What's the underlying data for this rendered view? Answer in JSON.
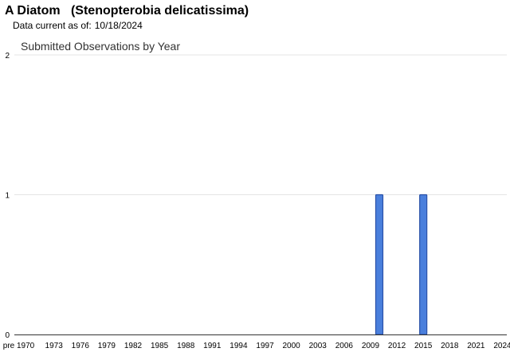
{
  "header": {
    "title": "A Diatom   (Stenopterobia delicatissima)",
    "data_current_label": "Data current as of:",
    "data_current_date": "10/18/2024"
  },
  "chart_data": {
    "type": "bar",
    "title": "Submitted Observations by Year",
    "xlabel": "",
    "ylabel": "",
    "ylim": [
      0,
      2
    ],
    "y_ticks": [
      0,
      1,
      2
    ],
    "x_tick_labels": [
      "pre 1970",
      "1973",
      "1976",
      "1979",
      "1982",
      "1985",
      "1988",
      "1991",
      "1994",
      "1997",
      "2000",
      "2003",
      "2006",
      "2009",
      "2012",
      "2015",
      "2018",
      "2021",
      "2024"
    ],
    "categories": [
      "pre 1970",
      "1970",
      "1971",
      "1972",
      "1973",
      "1974",
      "1975",
      "1976",
      "1977",
      "1978",
      "1979",
      "1980",
      "1981",
      "1982",
      "1983",
      "1984",
      "1985",
      "1986",
      "1987",
      "1988",
      "1989",
      "1990",
      "1991",
      "1992",
      "1993",
      "1994",
      "1995",
      "1996",
      "1997",
      "1998",
      "1999",
      "2000",
      "2001",
      "2002",
      "2003",
      "2004",
      "2005",
      "2006",
      "2007",
      "2008",
      "2009",
      "2010",
      "2011",
      "2012",
      "2013",
      "2014",
      "2015",
      "2016",
      "2017",
      "2018",
      "2019",
      "2020",
      "2021",
      "2022",
      "2023",
      "2024"
    ],
    "values": [
      0,
      0,
      0,
      0,
      0,
      0,
      0,
      0,
      0,
      0,
      0,
      0,
      0,
      0,
      0,
      0,
      0,
      0,
      0,
      0,
      0,
      0,
      0,
      0,
      0,
      0,
      0,
      0,
      0,
      0,
      0,
      0,
      0,
      0,
      0,
      0,
      0,
      0,
      0,
      0,
      0,
      1,
      0,
      0,
      0,
      0,
      1,
      0,
      0,
      0,
      0,
      0,
      0,
      0,
      0,
      0
    ],
    "grid": true,
    "bar_color": "#4a7fdc",
    "bar_border_color": "#2a52a8"
  }
}
